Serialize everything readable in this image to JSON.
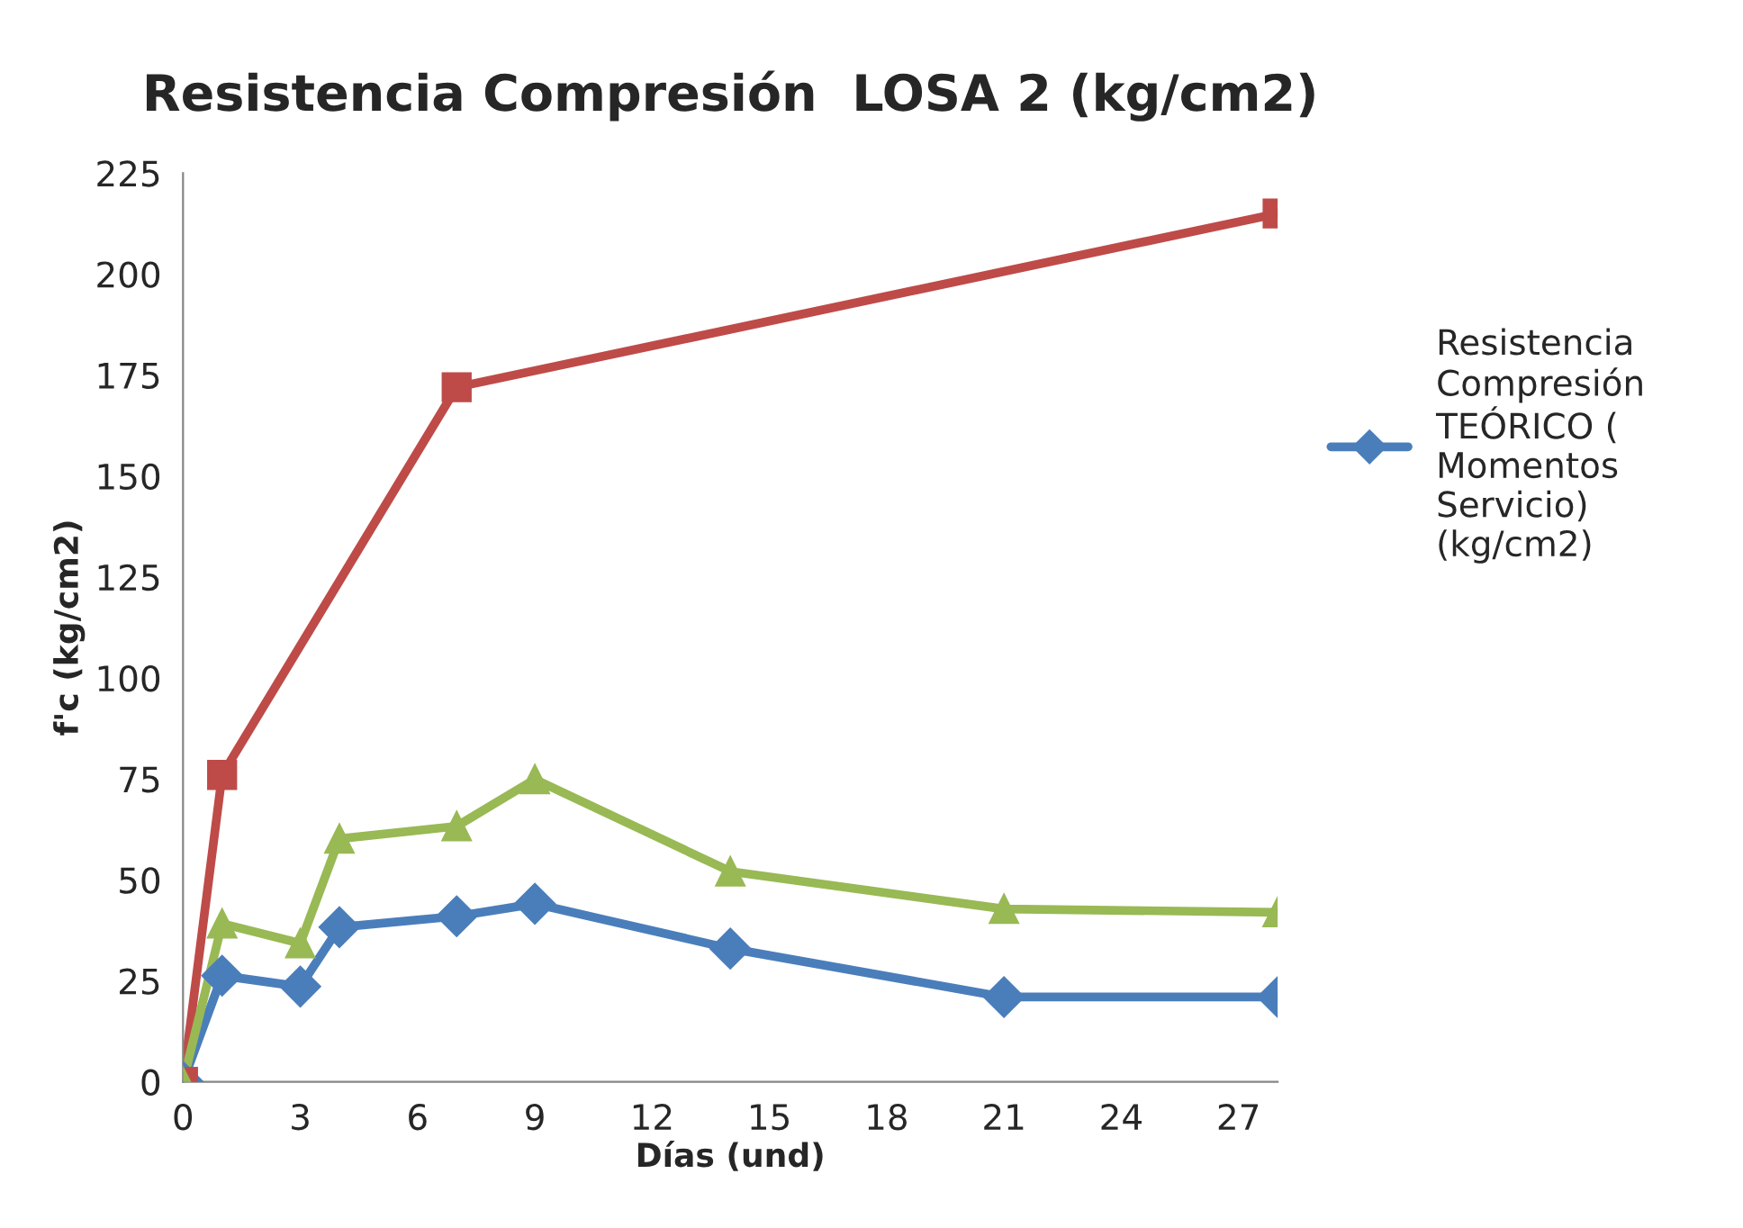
{
  "chart_data": {
    "type": "line",
    "title": "Resistencia Compresión  LOSA 2 (kg/cm2)",
    "xlabel": "Días (und)",
    "ylabel": "f'c (kg/cm2)",
    "xlim": [
      0,
      28
    ],
    "xticks": [
      0,
      3,
      6,
      9,
      12,
      15,
      18,
      21,
      24,
      27
    ],
    "ylim": [
      0,
      225
    ],
    "yticks": [
      0,
      25,
      50,
      75,
      100,
      125,
      150,
      175,
      200,
      225
    ],
    "grid": false,
    "legend": "right",
    "line_style": "solid",
    "series": [
      {
        "name": "Resistencia\nCompresión\nTEÓRICO (\nMomentos\nServicio)\n(kg/cm2)",
        "color": "#4a7ebb",
        "marker": "diamond",
        "x": [
          0,
          1,
          3,
          4,
          7,
          9,
          14,
          21,
          28
        ],
        "values": [
          0,
          26.3,
          23.6,
          38.3,
          41,
          44.1,
          33,
          21,
          21
        ]
      },
      {
        "color": "#be4b48",
        "marker": "square",
        "x": [
          0,
          1,
          7,
          28
        ],
        "values": [
          0,
          76,
          172,
          215
        ]
      },
      {
        "color": "#98b954",
        "marker": "triangle",
        "x": [
          0,
          1,
          3,
          4,
          7,
          9,
          14,
          21,
          28
        ],
        "values": [
          0,
          39.2,
          34.3,
          60.2,
          63.3,
          74.9,
          52.1,
          42.8,
          42
        ]
      }
    ]
  }
}
